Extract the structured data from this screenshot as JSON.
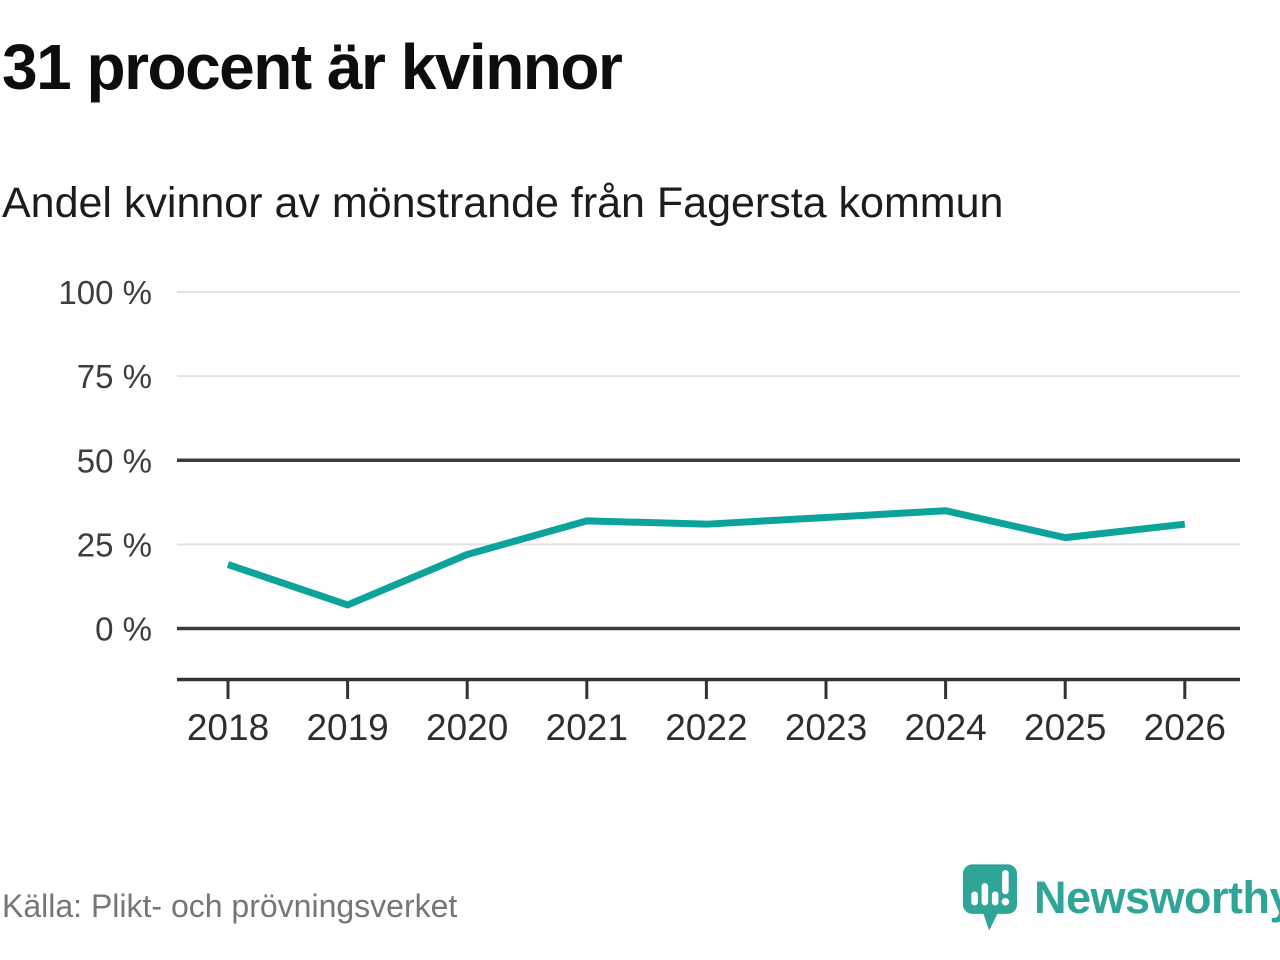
{
  "header": {
    "title": "31 procent är kvinnor",
    "subtitle": "Andel kvinnor av mönstrande från Fagersta kommun"
  },
  "footer": {
    "source": "Källa: Plikt- och prövningsverket",
    "brand": "Newsworthy"
  },
  "colors": {
    "line": "#0ca39a",
    "brand": "#2ea596",
    "grid_light": "#e2e2e2",
    "grid_dark": "#3b3b3b",
    "axis": "#333333",
    "y_label": "#3d3d3d",
    "x_label": "#2e2e2e",
    "title_text": "#0d0d0d",
    "source_text": "#767676"
  },
  "chart_data": {
    "type": "line",
    "title": "31 procent är kvinnor",
    "subtitle": "Andel kvinnor av mönstrande från Fagersta kommun",
    "x": [
      "2018",
      "2019",
      "2020",
      "2021",
      "2022",
      "2023",
      "2024",
      "2025",
      "2026"
    ],
    "series": [
      {
        "name": "Andel kvinnor av mönstrande",
        "values": [
          19,
          7,
          22,
          32,
          31,
          33,
          35,
          27,
          31
        ]
      }
    ],
    "unit": "%",
    "ylim": [
      0,
      100
    ],
    "yticks": [
      0,
      25,
      50,
      75,
      100
    ],
    "ytick_suffix": " %",
    "emphasized_yticks": [
      0,
      50
    ],
    "grid": true,
    "legend": "none",
    "source": "Källa: Plikt- och prövningsverket"
  }
}
